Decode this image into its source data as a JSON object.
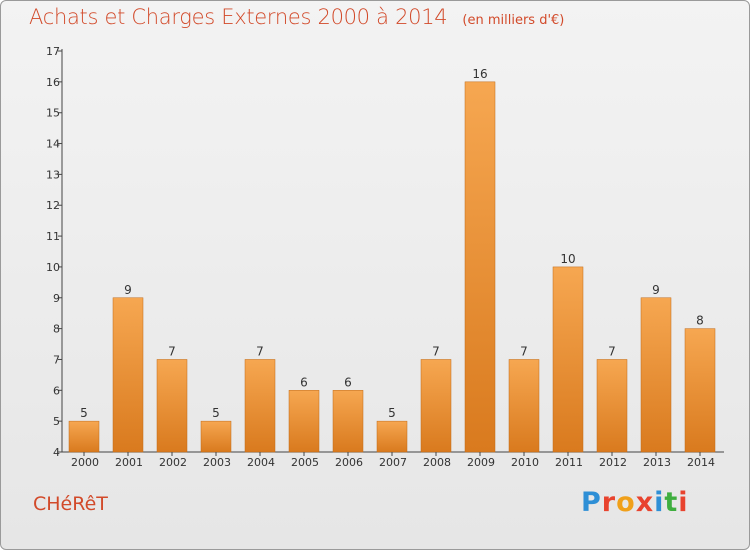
{
  "header": {
    "title": "Achats et Charges Externes 2000 à 2014",
    "unit": "(en milliers d'€)"
  },
  "footer": {
    "commune": "CHéRêT",
    "logo_text": "Proxiti"
  },
  "colors": {
    "title": "#d24a2a",
    "bar_top": "#f6a751",
    "bar_bottom": "#d97a1e",
    "logo": [
      "#2e8fd6",
      "#e8432e",
      "#f0a01a",
      "#e8432e",
      "#2e8fd6",
      "#3fae3f",
      "#e8432e"
    ]
  },
  "chart_data": {
    "type": "bar",
    "title": "Achats et Charges Externes 2000 à 2014",
    "subtitle": "(en milliers d'€)",
    "categories": [
      "2000",
      "2001",
      "2002",
      "2003",
      "2004",
      "2005",
      "2006",
      "2007",
      "2008",
      "2009",
      "2010",
      "2011",
      "2012",
      "2013",
      "2014"
    ],
    "values": [
      5,
      9,
      7,
      5,
      7,
      6,
      6,
      5,
      7,
      16,
      7,
      10,
      7,
      9,
      8
    ],
    "ylim": [
      4,
      17
    ],
    "yticks": [
      4,
      5,
      6,
      7,
      8,
      9,
      10,
      11,
      12,
      13,
      14,
      15,
      16,
      17
    ],
    "grid": false,
    "legend": "none",
    "xlabel": "",
    "ylabel": ""
  }
}
